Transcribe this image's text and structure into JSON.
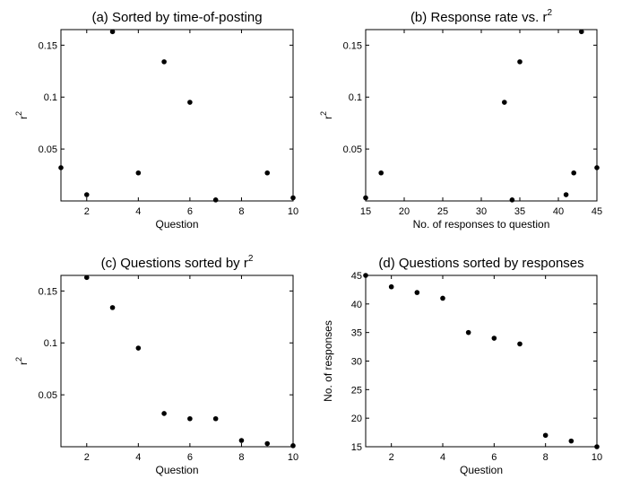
{
  "chart_data": [
    {
      "type": "scatter",
      "title": "(a) Sorted by time-of-posting",
      "title_superscript": "",
      "xlabel": "Question",
      "ylabel": "r",
      "ylabel_superscript": "2",
      "xlim": [
        1,
        10
      ],
      "ylim": [
        0,
        0.165
      ],
      "xticks": [
        2,
        4,
        6,
        8,
        10
      ],
      "xtick_labels": [
        "2",
        "4",
        "6",
        "8",
        "10"
      ],
      "yticks": [
        0.05,
        0.1,
        0.15
      ],
      "ytick_labels": [
        "0.05",
        "0.1",
        "0.15"
      ],
      "x": [
        1,
        2,
        3,
        4,
        5,
        6,
        7,
        9,
        10
      ],
      "y": [
        0.032,
        0.006,
        0.163,
        0.027,
        0.134,
        0.095,
        0.001,
        0.027,
        0.003
      ],
      "grid": false,
      "legend": "none"
    },
    {
      "type": "scatter",
      "title": "(b) Response rate vs. r",
      "title_superscript": "2",
      "xlabel": "No. of responses to question",
      "ylabel": "r",
      "ylabel_superscript": "2",
      "xlim": [
        15,
        45
      ],
      "ylim": [
        0,
        0.165
      ],
      "xticks": [
        15,
        20,
        25,
        30,
        35,
        40,
        45
      ],
      "xtick_labels": [
        "15",
        "20",
        "25",
        "30",
        "35",
        "40",
        "45"
      ],
      "yticks": [
        0.05,
        0.1,
        0.15
      ],
      "ytick_labels": [
        "0.05",
        "0.1",
        "0.15"
      ],
      "x": [
        15,
        17,
        33,
        34,
        35,
        41,
        42,
        43,
        45
      ],
      "y": [
        0.003,
        0.027,
        0.095,
        0.001,
        0.134,
        0.006,
        0.027,
        0.163,
        0.032
      ],
      "grid": false,
      "legend": "none"
    },
    {
      "type": "scatter",
      "title": "(c) Questions sorted by r",
      "title_superscript": "2",
      "xlabel": "Question",
      "ylabel": "r",
      "ylabel_superscript": "2",
      "xlim": [
        1,
        10
      ],
      "ylim": [
        0,
        0.165
      ],
      "xticks": [
        2,
        4,
        6,
        8,
        10
      ],
      "xtick_labels": [
        "2",
        "4",
        "6",
        "8",
        "10"
      ],
      "yticks": [
        0.05,
        0.1,
        0.15
      ],
      "ytick_labels": [
        "0.05",
        "0.1",
        "0.15"
      ],
      "x": [
        2,
        3,
        4,
        5,
        6,
        7,
        8,
        9,
        10
      ],
      "y": [
        0.163,
        0.134,
        0.095,
        0.032,
        0.027,
        0.027,
        0.006,
        0.003,
        0.001
      ],
      "grid": false,
      "legend": "none"
    },
    {
      "type": "scatter",
      "title": "(d) Questions sorted by responses",
      "title_superscript": "",
      "xlabel": "Question",
      "ylabel": "No. of responses",
      "ylabel_superscript": "",
      "xlim": [
        1,
        10
      ],
      "ylim": [
        15,
        45
      ],
      "xticks": [
        2,
        4,
        6,
        8,
        10
      ],
      "xtick_labels": [
        "2",
        "4",
        "6",
        "8",
        "10"
      ],
      "yticks": [
        15,
        20,
        25,
        30,
        35,
        40,
        45
      ],
      "ytick_labels": [
        "15",
        "20",
        "25",
        "30",
        "35",
        "40",
        "45"
      ],
      "x": [
        1,
        2,
        3,
        4,
        5,
        6,
        7,
        8,
        9,
        10
      ],
      "y": [
        45,
        43,
        42,
        41,
        35,
        34,
        33,
        17,
        16,
        15
      ],
      "grid": false,
      "legend": "none"
    }
  ]
}
